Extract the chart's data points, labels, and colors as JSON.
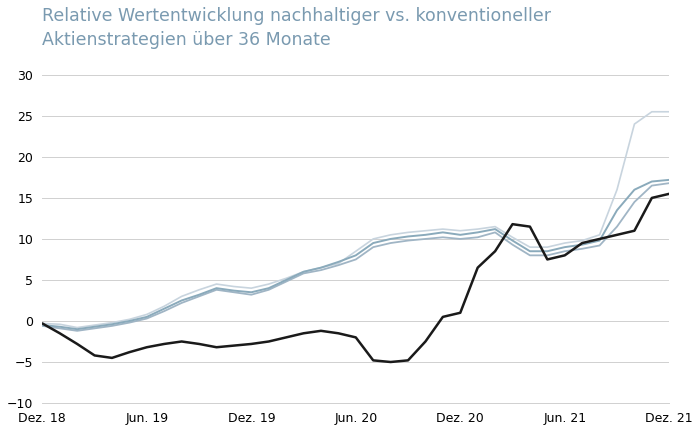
{
  "title": "Relative Wertentwicklung nachhaltiger vs. konventioneller\nAktienstrategien über 36 Monate",
  "title_fontsize": 12.5,
  "title_color": "#7a9ab0",
  "xlim": [
    0,
    36
  ],
  "ylim": [
    -10,
    32
  ],
  "yticks": [
    -10,
    -5,
    0,
    5,
    10,
    15,
    20,
    25,
    30
  ],
  "xtick_labels": [
    "Dez. 18",
    "Jun. 19",
    "Dez. 19",
    "Jun. 20",
    "Dez. 20",
    "Jun. 21",
    "Dez. 21"
  ],
  "xtick_positions": [
    0,
    6,
    12,
    18,
    24,
    30,
    36
  ],
  "background_color": "#ffffff",
  "grid_color": "#d0d0d0",
  "series": {
    "esg_light": [
      -0.3,
      -0.4,
      -0.8,
      -0.5,
      -0.2,
      0.2,
      0.8,
      1.8,
      3.0,
      3.8,
      4.5,
      4.2,
      4.0,
      4.5,
      5.2,
      6.0,
      6.5,
      7.0,
      8.5,
      10.0,
      10.5,
      10.8,
      11.0,
      11.2,
      11.0,
      11.2,
      11.5,
      10.2,
      9.0,
      9.0,
      9.5,
      9.8,
      10.5,
      16.0,
      24.0,
      25.5,
      25.5
    ],
    "esg_mid1": [
      -0.5,
      -0.7,
      -1.0,
      -0.7,
      -0.4,
      0.0,
      0.5,
      1.5,
      2.5,
      3.2,
      4.0,
      3.7,
      3.5,
      4.0,
      5.0,
      6.0,
      6.5,
      7.2,
      8.0,
      9.5,
      10.0,
      10.3,
      10.5,
      10.8,
      10.5,
      10.8,
      11.2,
      9.8,
      8.5,
      8.5,
      9.0,
      9.3,
      9.8,
      13.5,
      16.0,
      17.0,
      17.2
    ],
    "esg_mid2": [
      -0.6,
      -0.9,
      -1.2,
      -0.9,
      -0.6,
      -0.2,
      0.3,
      1.2,
      2.2,
      3.0,
      3.8,
      3.5,
      3.2,
      3.8,
      4.8,
      5.8,
      6.2,
      6.8,
      7.5,
      9.0,
      9.5,
      9.8,
      10.0,
      10.2,
      10.0,
      10.2,
      10.8,
      9.3,
      8.0,
      8.0,
      8.5,
      8.8,
      9.2,
      11.5,
      14.5,
      16.5,
      16.8
    ],
    "conventional": [
      -0.3,
      -1.5,
      -2.8,
      -4.2,
      -4.5,
      -3.8,
      -3.2,
      -2.8,
      -2.5,
      -2.8,
      -3.2,
      -3.0,
      -2.8,
      -2.5,
      -2.0,
      -1.5,
      -1.2,
      -1.5,
      -2.0,
      -4.8,
      -5.0,
      -4.8,
      -2.5,
      0.5,
      1.0,
      6.5,
      8.5,
      11.8,
      11.5,
      7.5,
      8.0,
      9.5,
      10.0,
      10.5,
      11.0,
      15.0,
      15.5
    ]
  },
  "line_colors": {
    "esg_light": "#c8d4de",
    "esg_mid1": "#8aaabb",
    "esg_mid2": "#a0b5c5",
    "conventional": "#1a1a1a"
  },
  "line_widths": {
    "esg_light": 1.2,
    "esg_mid1": 1.4,
    "esg_mid2": 1.3,
    "conventional": 1.8
  }
}
